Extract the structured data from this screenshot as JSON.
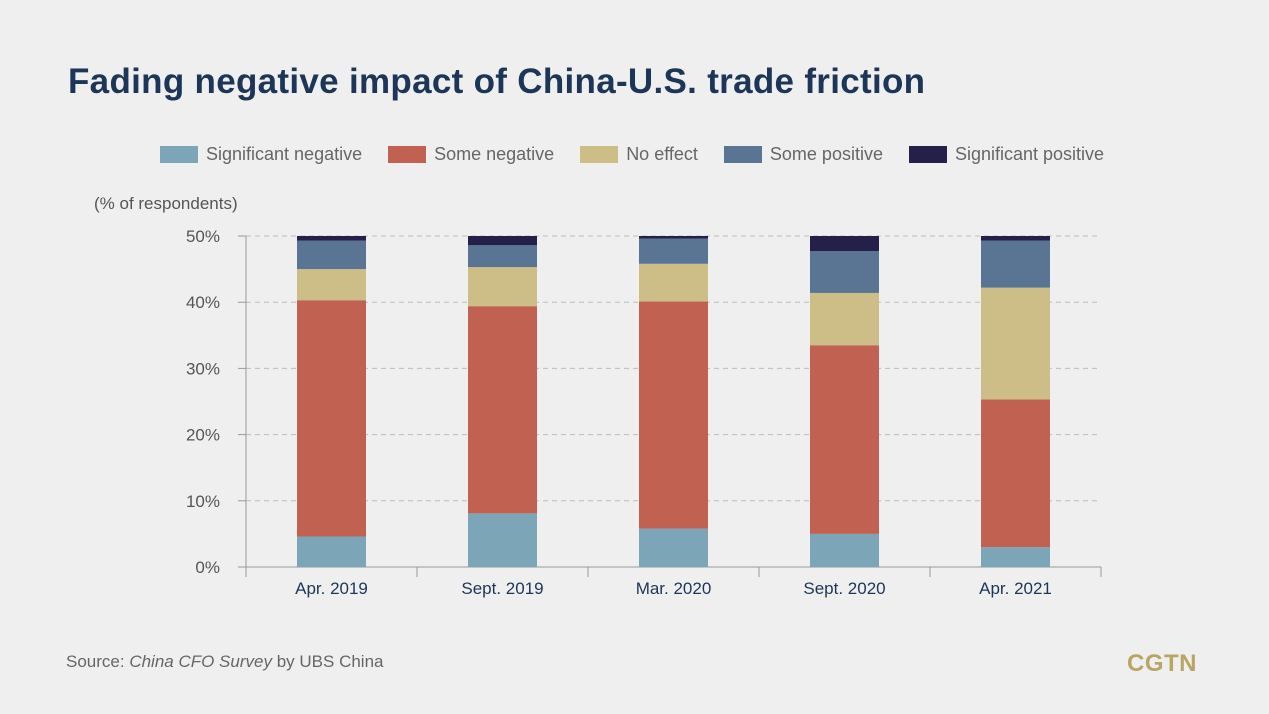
{
  "title": "Fading negative impact of China-U.S. trade friction",
  "source": {
    "prefix": "Source: ",
    "publication": "China CFO Survey",
    "suffix": " by UBS China"
  },
  "logo": "CGTN",
  "chart_data": {
    "type": "bar",
    "stacked": true,
    "title": "Fading negative impact of China-U.S. trade friction",
    "ylabel": "(% of respondents)",
    "xlabel": "",
    "ylim": [
      0,
      50
    ],
    "yticks": [
      0,
      10,
      20,
      30,
      40,
      50
    ],
    "ytick_labels": [
      "0%",
      "10%",
      "20%",
      "30%",
      "40%",
      "50%"
    ],
    "grid": true,
    "legend_position": "top",
    "categories": [
      "Apr. 2019",
      "Sept. 2019",
      "Mar. 2020",
      "Sept. 2020",
      "Apr. 2021"
    ],
    "series": [
      {
        "name": "Significant negative",
        "color": "#7ca6b7",
        "values": [
          4.6,
          8.1,
          5.8,
          5.0,
          3.0
        ]
      },
      {
        "name": "Some negative",
        "color": "#c06151",
        "values": [
          35.7,
          31.3,
          34.3,
          28.5,
          22.3
        ]
      },
      {
        "name": "No effect",
        "color": "#cdbe88",
        "values": [
          4.7,
          5.9,
          5.7,
          7.9,
          16.9
        ]
      },
      {
        "name": "Some positive",
        "color": "#5a7494",
        "values": [
          4.3,
          3.3,
          3.8,
          6.3,
          7.1
        ]
      },
      {
        "name": "Significant positive",
        "color": "#25204a",
        "values": [
          0.7,
          1.4,
          0.4,
          2.3,
          0.7
        ]
      }
    ]
  }
}
